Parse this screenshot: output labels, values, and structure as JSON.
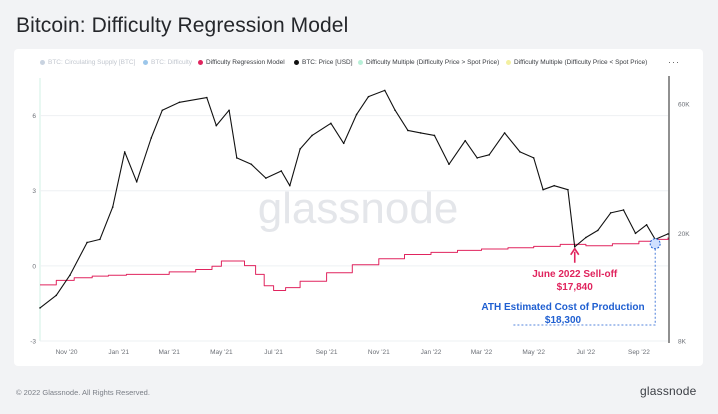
{
  "title": "Bitcoin: Difficulty Regression Model",
  "legend": [
    {
      "label": "BTC: Circulating Supply [BTC]",
      "color": "#c9d3e0",
      "active": false
    },
    {
      "label": "BTC: Difficulty",
      "color": "#9cc6ea",
      "active": false
    },
    {
      "label": "Difficulty Regression Model",
      "color": "#e0245e",
      "active": true
    },
    {
      "label": "BTC: Price [USD]",
      "color": "#111111",
      "active": true
    },
    {
      "label": "Difficulty Multiple (Difficulty Price > Spot Price)",
      "color": "#b8f0d8",
      "active": true
    },
    {
      "label": "Difficulty Multiple (Difficulty Price < Spot Price)",
      "color": "#f3f0a0",
      "active": true
    }
  ],
  "more_label": "···",
  "watermark": "glassnode",
  "footer": "© 2022 Glassnode. All Rights Reserved.",
  "brand": "glassnode",
  "chart_data": {
    "type": "line",
    "x_ticks": [
      "Nov '20",
      "Jan '21",
      "Mar '21",
      "May '21",
      "Jul '21",
      "Sep '21",
      "Nov '21",
      "Jan '22",
      "Mar '22",
      "May '22",
      "Jul '22",
      "Sep '22"
    ],
    "y_left_ticks": [
      "-3",
      "0",
      "3",
      "6"
    ],
    "y_left_range": [
      -3,
      7.5
    ],
    "y_right_ticks": [
      "8K",
      "20K",
      "60K"
    ],
    "y_right_scale": "log",
    "y_right_range": [
      8000,
      75000
    ],
    "x_range": [
      "2020-10-01",
      "2022-10-05"
    ],
    "series": [
      {
        "name": "BTC: Price [USD]",
        "color": "#111111",
        "x": [
          "2020-10-01",
          "2020-10-20",
          "2020-11-05",
          "2020-11-25",
          "2020-12-10",
          "2020-12-25",
          "2021-01-08",
          "2021-01-22",
          "2021-02-08",
          "2021-02-21",
          "2021-03-13",
          "2021-04-14",
          "2021-04-25",
          "2021-05-10",
          "2021-05-19",
          "2021-06-05",
          "2021-06-22",
          "2021-07-10",
          "2021-07-20",
          "2021-08-01",
          "2021-08-15",
          "2021-09-06",
          "2021-09-21",
          "2021-10-06",
          "2021-10-20",
          "2021-11-08",
          "2021-11-20",
          "2021-12-05",
          "2021-12-20",
          "2022-01-05",
          "2022-01-22",
          "2022-02-10",
          "2022-02-24",
          "2022-03-10",
          "2022-03-28",
          "2022-04-15",
          "2022-05-01",
          "2022-05-12",
          "2022-05-25",
          "2022-06-10",
          "2022-06-18",
          "2022-07-01",
          "2022-07-15",
          "2022-07-30",
          "2022-08-14",
          "2022-08-28",
          "2022-09-10",
          "2022-09-20",
          "2022-10-05"
        ],
        "values": [
          10600,
          11800,
          14000,
          18500,
          19000,
          25000,
          40000,
          31000,
          45000,
          57000,
          61000,
          63500,
          50000,
          57000,
          38000,
          36000,
          32000,
          34000,
          30000,
          41000,
          46000,
          51000,
          43000,
          55000,
          64000,
          67500,
          57000,
          48000,
          47000,
          46000,
          36000,
          44000,
          38000,
          39000,
          47000,
          40000,
          38000,
          29000,
          30000,
          29000,
          17840,
          19300,
          20500,
          23800,
          24400,
          20000,
          21500,
          19000,
          19900
        ]
      },
      {
        "name": "Difficulty Regression Model",
        "color": "#e0245e",
        "x": [
          "2020-10-01",
          "2020-10-20",
          "2020-11-10",
          "2020-12-01",
          "2020-12-20",
          "2021-01-10",
          "2021-02-01",
          "2021-03-01",
          "2021-04-01",
          "2021-04-20",
          "2021-05-01",
          "2021-05-14",
          "2021-05-28",
          "2021-06-10",
          "2021-06-20",
          "2021-07-01",
          "2021-07-15",
          "2021-08-01",
          "2021-09-01",
          "2021-10-01",
          "2021-11-01",
          "2021-12-01",
          "2022-01-01",
          "2022-02-01",
          "2022-03-01",
          "2022-04-01",
          "2022-05-01",
          "2022-06-01",
          "2022-07-01",
          "2022-08-01",
          "2022-09-01",
          "2022-09-20",
          "2022-10-05"
        ],
        "values": [
          12900,
          13400,
          13700,
          13900,
          14000,
          14100,
          14100,
          14400,
          14700,
          15100,
          15800,
          15800,
          15200,
          14100,
          12800,
          12300,
          12600,
          13300,
          14300,
          15300,
          16100,
          16700,
          17000,
          17300,
          17500,
          17700,
          17900,
          18200,
          18000,
          18300,
          18700,
          19000,
          19300
        ]
      }
    ],
    "annotations": [
      {
        "title": "June 2022 Sell-off",
        "value": "$17,840",
        "color": "#e0245e"
      },
      {
        "title": "ATH Estimated Cost of Production",
        "value": "$18,300",
        "color": "#1f5fd1"
      }
    ],
    "grid": true,
    "legend_position": "top"
  }
}
